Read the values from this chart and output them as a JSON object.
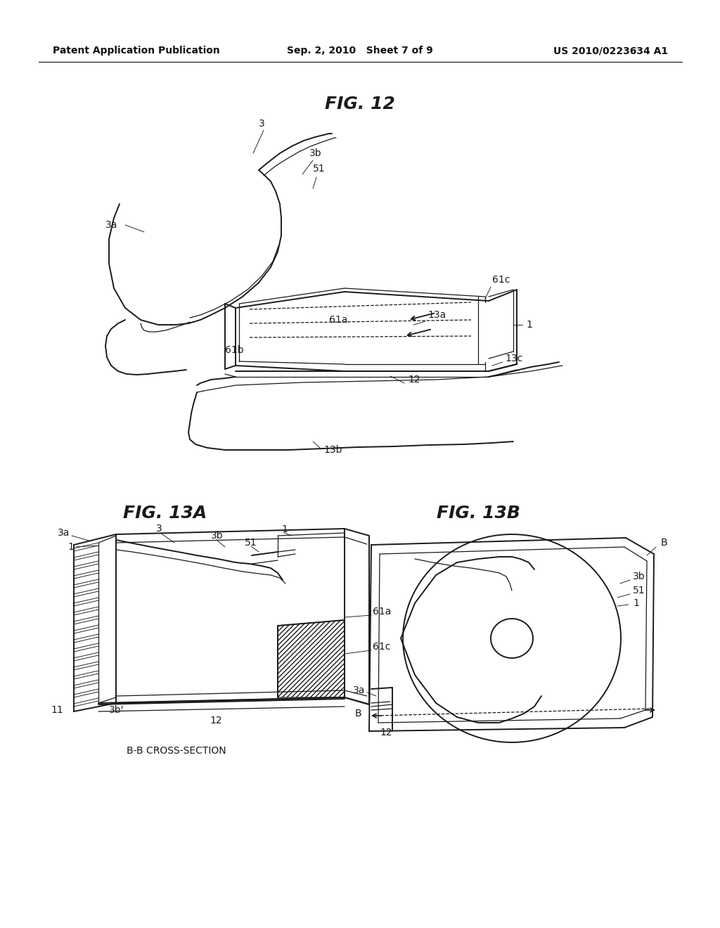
{
  "background_color": "#ffffff",
  "page_width": 10.24,
  "page_height": 13.2,
  "header": {
    "left": "Patent Application Publication",
    "center": "Sep. 2, 2010   Sheet 7 of 9",
    "right": "US 2010/0223634 A1",
    "fontsize": 10.0
  }
}
